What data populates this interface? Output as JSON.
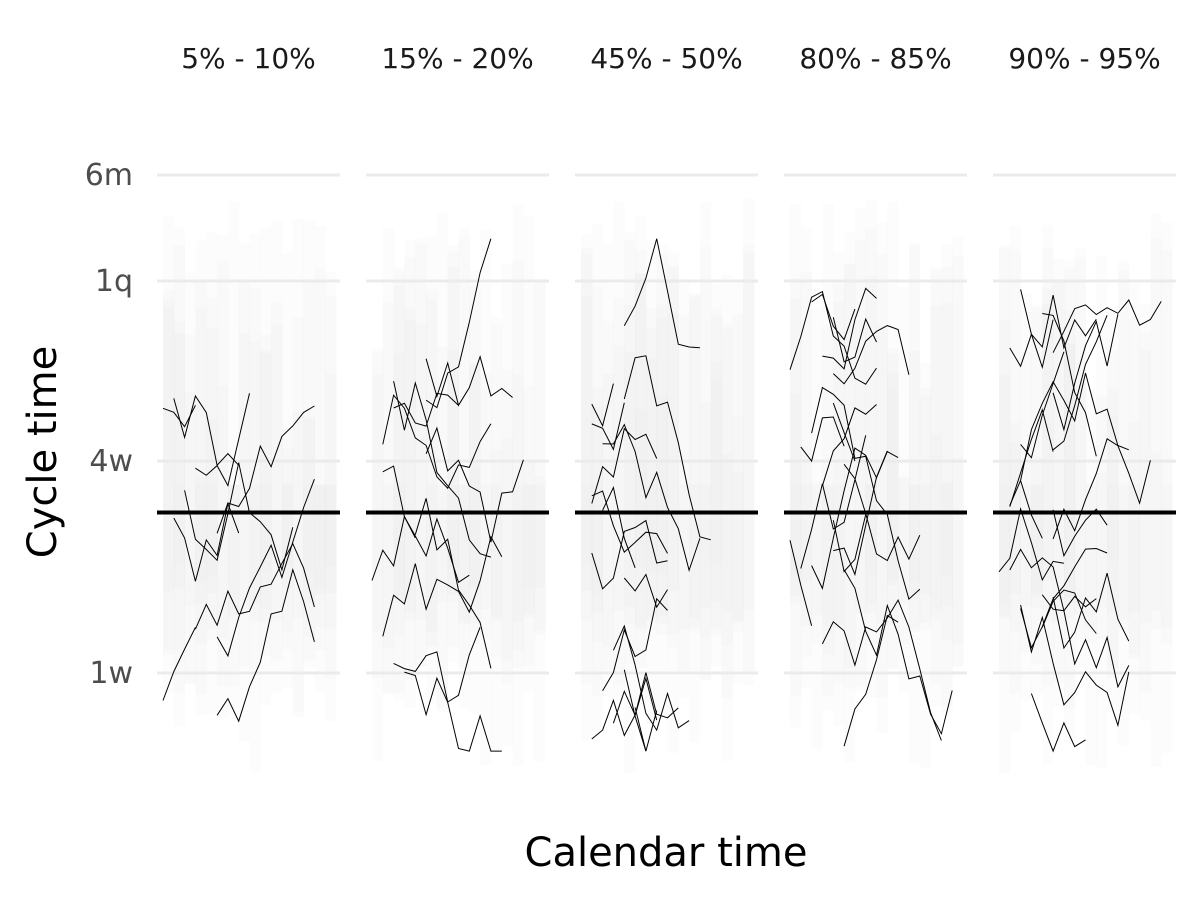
{
  "chart_data": {
    "type": "line",
    "xlabel": "Calendar time",
    "ylabel": "Cycle time",
    "y_scale": "log",
    "y_ticks": [
      {
        "label": "1w",
        "days": 7
      },
      {
        "label": "4w",
        "days": 28
      },
      {
        "label": "1q",
        "days": 91
      },
      {
        "label": "6m",
        "days": 182
      }
    ],
    "ylim_days": [
      3.5,
      200
    ],
    "reference_line_days": 20,
    "grid": true,
    "legend": "none",
    "colors": {
      "lines": "#000000",
      "grid": "#ebebeb",
      "band": "#d9d9d9",
      "reference": "#000000"
    },
    "panels": [
      {
        "label": "5% - 10%"
      },
      {
        "label": "15% - 20%"
      },
      {
        "label": "45% - 50%"
      },
      {
        "label": "80% - 85%"
      },
      {
        "label": "90% - 95%"
      }
    ]
  }
}
